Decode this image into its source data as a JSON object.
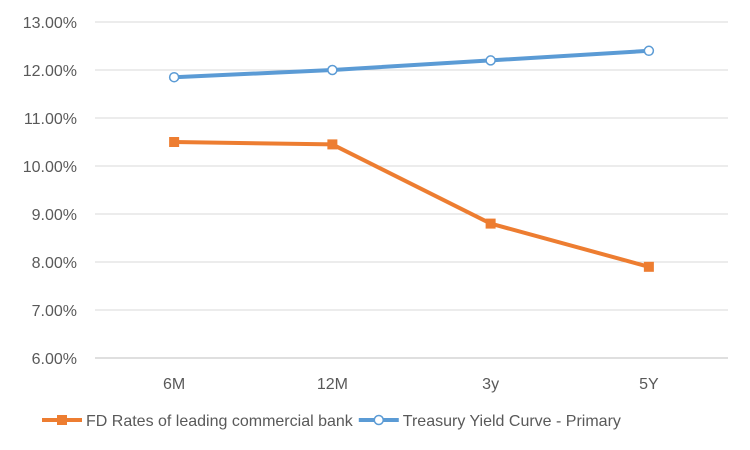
{
  "chart_data": {
    "type": "line",
    "categories": [
      "6M",
      "12M",
      "3y",
      "5Y"
    ],
    "y_ticks": [
      "6.00%",
      "7.00%",
      "8.00%",
      "9.00%",
      "10.00%",
      "11.00%",
      "12.00%",
      "13.00%"
    ],
    "ylim": [
      6,
      13
    ],
    "grid": true,
    "legend_position": "bottom",
    "series": [
      {
        "name": "FD Rates of leading commercial bank",
        "values": [
          10.5,
          10.45,
          8.8,
          7.9
        ],
        "color": "#ED7D31",
        "marker": "square"
      },
      {
        "name": "Treasury Yield Curve - Primary",
        "values": [
          11.85,
          12.0,
          12.2,
          12.4
        ],
        "color": "#5B9BD5",
        "marker": "circle-open"
      }
    ]
  }
}
